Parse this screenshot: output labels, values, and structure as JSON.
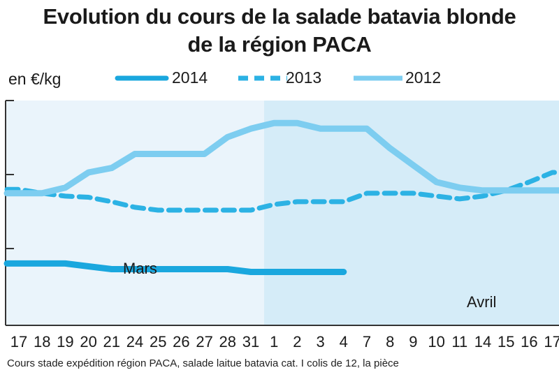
{
  "title_line1": "Evolution du cours de la salade batavia blonde",
  "title_line2": "de la région PACA",
  "unit_label": "en €/kg",
  "legend": [
    {
      "label": "2014",
      "color": "#1aa7de",
      "style": "solid-thick"
    },
    {
      "label": "2013",
      "color": "#2cb2e4",
      "style": "dashed"
    },
    {
      "label": "2012",
      "color": "#7dcdf0",
      "style": "solid"
    }
  ],
  "months": {
    "march": "Mars",
    "april": "Avril"
  },
  "footnote": "Cours stade expédition région PACA, salade laitue batavia cat. I colis de 12, la pièce",
  "chart_data": {
    "type": "line",
    "categories": [
      "17",
      "18",
      "19",
      "20",
      "21",
      "24",
      "25",
      "26",
      "27",
      "28",
      "31",
      "1",
      "2",
      "3",
      "4",
      "7",
      "8",
      "9",
      "10",
      "11",
      "14",
      "15",
      "16",
      "17"
    ],
    "grid": false,
    "y_axis_labels_visible": false,
    "series": [
      {
        "name": "2014",
        "values": [
          2.1,
          2.1,
          2.1,
          2.05,
          2.0,
          2.0,
          2.0,
          2.0,
          2.0,
          2.0,
          1.95,
          1.95,
          1.95,
          1.95,
          1.95,
          null,
          null,
          null,
          null,
          null,
          null,
          null,
          null,
          null
        ],
        "color": "#1aa7de"
      },
      {
        "name": "2013",
        "values": [
          3.42,
          3.35,
          3.3,
          3.28,
          3.2,
          3.1,
          3.05,
          3.05,
          3.05,
          3.05,
          3.05,
          3.15,
          3.2,
          3.2,
          3.2,
          3.35,
          3.35,
          3.35,
          3.3,
          3.25,
          3.3,
          3.4,
          3.55,
          3.72
        ],
        "color": "#2cb2e4"
      },
      {
        "name": "2012",
        "values": [
          3.35,
          3.35,
          3.45,
          3.72,
          3.8,
          4.05,
          4.05,
          4.05,
          4.05,
          4.35,
          4.5,
          4.6,
          4.6,
          4.5,
          4.5,
          4.5,
          4.15,
          3.85,
          3.55,
          3.45,
          3.4,
          3.4,
          3.4,
          3.4
        ],
        "color": "#7dcdf0"
      }
    ]
  }
}
